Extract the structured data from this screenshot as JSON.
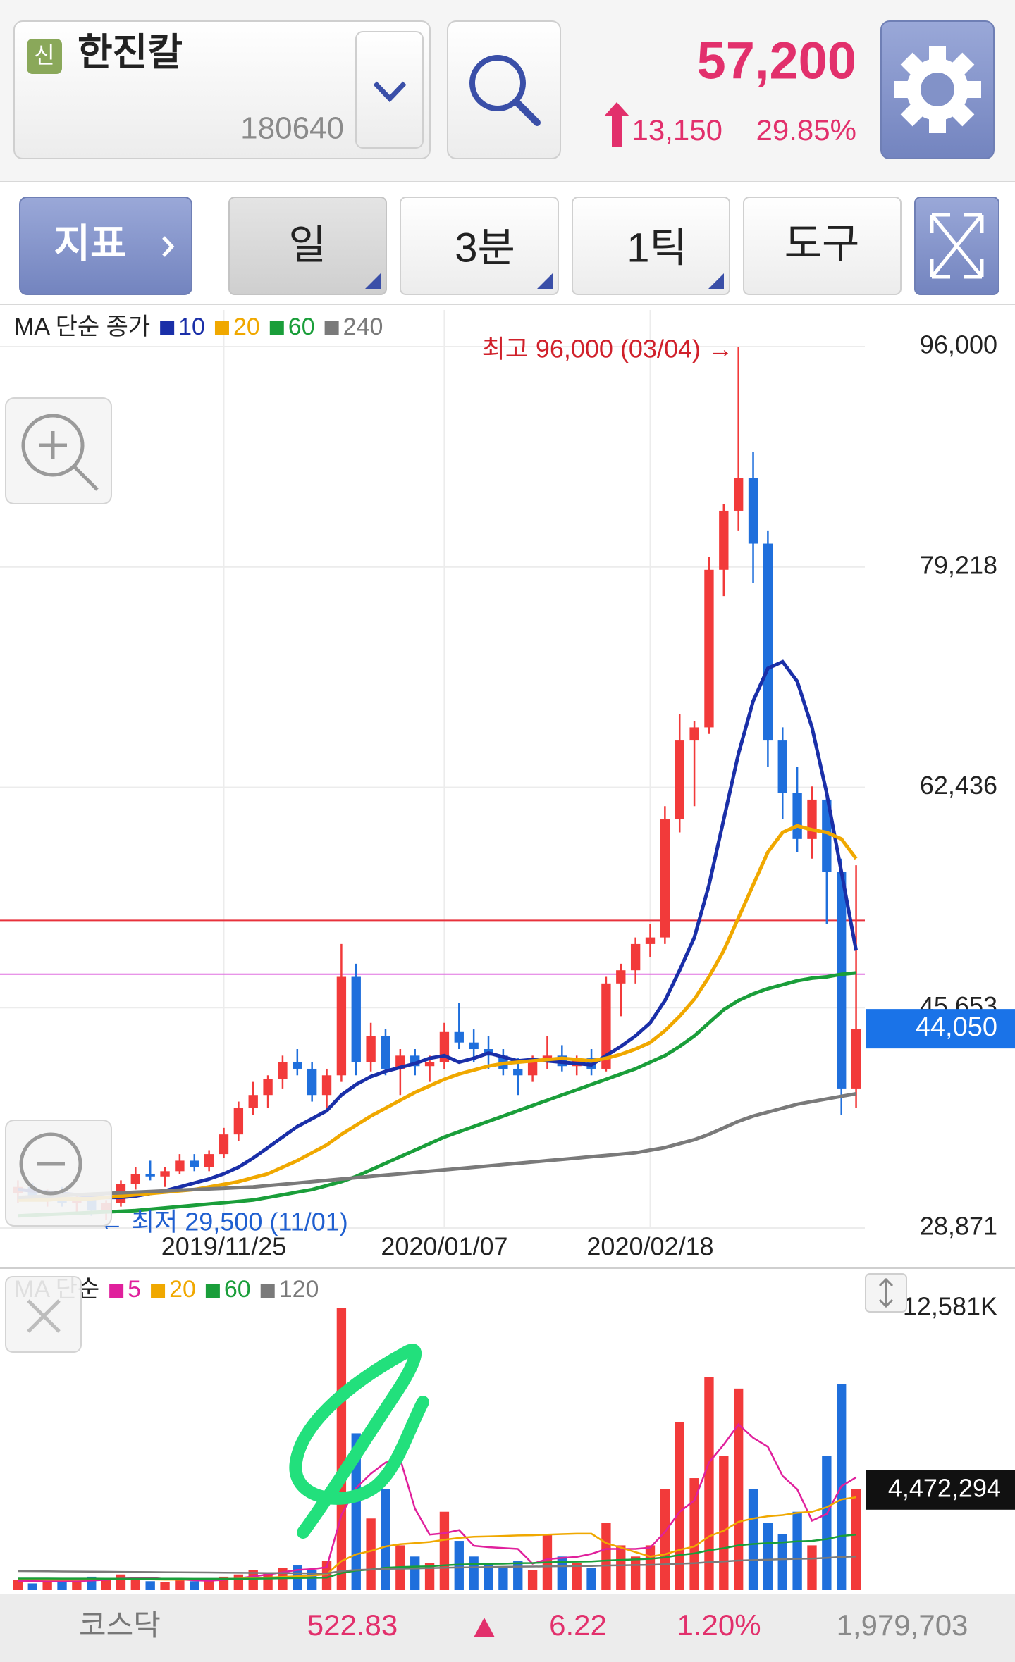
{
  "header": {
    "badge": "신",
    "name": "한진칼",
    "code": "180640",
    "price": "57,200",
    "change": "13,150",
    "change_pct": "29.85%"
  },
  "toolbar": {
    "indicator": "지표",
    "period": "일",
    "interval": "3분",
    "tick": "1틱",
    "tools": "도구"
  },
  "footer": {
    "market": "코스닥",
    "index": "522.83",
    "change": "6.22",
    "change_pct": "1.20%",
    "volume": "1,979,703"
  },
  "chart_data": [
    {
      "type": "candlestick",
      "legend_title": "MA 단순 종가",
      "categories": [
        null,
        null,
        null,
        null,
        null,
        null,
        null,
        null,
        null,
        null,
        null,
        null,
        null,
        null,
        "2019/11/25",
        null,
        null,
        null,
        null,
        null,
        null,
        null,
        null,
        null,
        null,
        null,
        null,
        null,
        null,
        "2020/01/07",
        null,
        null,
        null,
        null,
        null,
        null,
        null,
        null,
        null,
        null,
        null,
        null,
        null,
        "2020/02/18",
        null,
        null,
        null,
        null,
        null,
        null,
        null,
        null,
        null,
        null,
        null,
        null,
        null,
        null
      ],
      "candles": [
        [
          31500,
          32500,
          30800,
          32000
        ],
        [
          32000,
          32300,
          31000,
          31200
        ],
        [
          31200,
          31800,
          30500,
          31500
        ],
        [
          31500,
          32000,
          30500,
          30800
        ],
        [
          30800,
          31500,
          30000,
          31000
        ],
        [
          31000,
          31300,
          29800,
          30200
        ],
        [
          30200,
          31000,
          29500,
          30800
        ],
        [
          30800,
          32500,
          30500,
          32200
        ],
        [
          32200,
          33500,
          31800,
          33000
        ],
        [
          33000,
          34000,
          32500,
          32800
        ],
        [
          32800,
          33500,
          32000,
          33200
        ],
        [
          33200,
          34500,
          33000,
          34000
        ],
        [
          34000,
          34500,
          33200,
          33500
        ],
        [
          33500,
          34800,
          33200,
          34500
        ],
        [
          34500,
          36500,
          34200,
          36000
        ],
        [
          36000,
          38500,
          35500,
          38000
        ],
        [
          38000,
          40000,
          37500,
          39000
        ],
        [
          39000,
          40500,
          38000,
          40200
        ],
        [
          40200,
          42000,
          39500,
          41500
        ],
        [
          41500,
          42500,
          40500,
          41000
        ],
        [
          41000,
          41500,
          38500,
          39000
        ],
        [
          39000,
          41000,
          38000,
          40500
        ],
        [
          40500,
          50500,
          40000,
          48000
        ],
        [
          48000,
          49000,
          40500,
          41500
        ],
        [
          41500,
          44500,
          40800,
          43500
        ],
        [
          43500,
          44000,
          40500,
          41000
        ],
        [
          41000,
          42500,
          39000,
          42000
        ],
        [
          42000,
          42500,
          40500,
          41200
        ],
        [
          41200,
          42000,
          40000,
          41500
        ],
        [
          41500,
          44500,
          41000,
          43800
        ],
        [
          43800,
          46000,
          42500,
          43000
        ],
        [
          43000,
          44000,
          41500,
          42500
        ],
        [
          42500,
          43500,
          41000,
          42000
        ],
        [
          42000,
          42500,
          40500,
          41000
        ],
        [
          41000,
          41800,
          39000,
          40500
        ],
        [
          40500,
          42000,
          40000,
          41500
        ],
        [
          41500,
          43500,
          41000,
          42000
        ],
        [
          42000,
          42800,
          40800,
          41200
        ],
        [
          41200,
          42000,
          40500,
          41800
        ],
        [
          41800,
          42500,
          40500,
          41000
        ],
        [
          41000,
          48000,
          40800,
          47500
        ],
        [
          47500,
          49000,
          45000,
          48500
        ],
        [
          48500,
          51000,
          47500,
          50500
        ],
        [
          50500,
          52000,
          49500,
          51000
        ],
        [
          51000,
          61000,
          50500,
          60000
        ],
        [
          60000,
          68000,
          59000,
          66000
        ],
        [
          66000,
          67500,
          61000,
          67000
        ],
        [
          67000,
          80000,
          66500,
          79000
        ],
        [
          79000,
          84000,
          77000,
          83500
        ],
        [
          83500,
          96000,
          82000,
          86000
        ],
        [
          86000,
          88000,
          78000,
          81000
        ],
        [
          81000,
          82000,
          64000,
          66000
        ],
        [
          66000,
          67000,
          60000,
          62000
        ],
        [
          62000,
          64000,
          57500,
          58500
        ],
        [
          58500,
          62500,
          57000,
          61500
        ],
        [
          61500,
          62000,
          52000,
          56000
        ],
        [
          56000,
          57000,
          37500,
          39500
        ],
        [
          39500,
          56500,
          38000,
          44050
        ]
      ],
      "up_color": "#f23a3a",
      "down_color": "#1f6fdc",
      "series": [
        {
          "name": "10",
          "color": "#1a2fa8",
          "values": [
            31800,
            31700,
            31600,
            31500,
            31400,
            31300,
            31200,
            31200,
            31300,
            31500,
            31700,
            32000,
            32300,
            32600,
            33000,
            33500,
            34200,
            35000,
            35800,
            36600,
            37200,
            37800,
            39000,
            39800,
            40400,
            40800,
            41100,
            41400,
            41800,
            42000,
            41500,
            41800,
            42200,
            41900,
            41600,
            41700,
            41600,
            41500,
            41400,
            41300,
            42000,
            42700,
            43500,
            44500,
            46200,
            48500,
            51000,
            55000,
            60000,
            65000,
            69000,
            71500,
            72000,
            70500,
            67000,
            62000,
            56000,
            50000
          ]
        },
        {
          "name": "20",
          "color": "#f0a800",
          "values": [
            31000,
            31000,
            31000,
            31100,
            31100,
            31100,
            31200,
            31300,
            31400,
            31500,
            31600,
            31700,
            31800,
            32000,
            32200,
            32400,
            32700,
            33000,
            33500,
            34000,
            34600,
            35200,
            36000,
            36700,
            37400,
            38000,
            38600,
            39200,
            39700,
            40200,
            40600,
            40900,
            41200,
            41400,
            41500,
            41600,
            41700,
            41800,
            41700,
            41600,
            41800,
            42100,
            42500,
            43000,
            43900,
            45000,
            46300,
            48000,
            50000,
            52500,
            55000,
            57500,
            59000,
            59500,
            59200,
            59000,
            58500,
            57000
          ]
        },
        {
          "name": "60",
          "color": "#1a9e3a",
          "values": [
            29800,
            29850,
            29900,
            29950,
            30000,
            30050,
            30100,
            30150,
            30200,
            30300,
            30400,
            30500,
            30600,
            30700,
            30800,
            30900,
            31000,
            31200,
            31400,
            31600,
            31800,
            32100,
            32400,
            32800,
            33300,
            33800,
            34300,
            34800,
            35300,
            35800,
            36200,
            36600,
            37000,
            37400,
            37800,
            38200,
            38600,
            39000,
            39400,
            39800,
            40200,
            40600,
            41000,
            41500,
            42000,
            42700,
            43500,
            44500,
            45500,
            46200,
            46700,
            47100,
            47400,
            47700,
            47900,
            48000,
            48200,
            48300
          ]
        },
        {
          "name": "240",
          "color": "#7a7a7a",
          "values": [
            31200,
            31250,
            31300,
            31350,
            31400,
            31450,
            31500,
            31550,
            31600,
            31650,
            31700,
            31750,
            31800,
            31850,
            31900,
            31950,
            32000,
            32100,
            32200,
            32300,
            32400,
            32500,
            32600,
            32700,
            32800,
            32900,
            33000,
            33100,
            33200,
            33300,
            33400,
            33500,
            33600,
            33700,
            33800,
            33900,
            34000,
            34100,
            34200,
            34300,
            34400,
            34500,
            34600,
            34800,
            35000,
            35300,
            35600,
            36000,
            36500,
            37000,
            37400,
            37700,
            38000,
            38300,
            38500,
            38700,
            38900,
            39100
          ]
        }
      ],
      "ylim": [
        28871,
        96000
      ],
      "yticks": [
        {
          "value": 28871,
          "label": "28,871"
        },
        {
          "value": 45653,
          "label": "45,653"
        },
        {
          "value": 62436,
          "label": "62,436"
        },
        {
          "value": 79218,
          "label": "79,218"
        },
        {
          "value": 96000,
          "label": "96,000"
        }
      ],
      "grid": true,
      "hlines": [
        {
          "value": 52300,
          "color": "#e8323c"
        },
        {
          "value": 48200,
          "color": "#e070e0"
        }
      ],
      "last_value": {
        "value": 44050,
        "label": "44,050"
      },
      "annotations": {
        "high": "최고 96,000 (03/04) →",
        "low": "← 최저 29,500 (11/01)"
      }
    },
    {
      "type": "bar",
      "legend_title": "MA 단순",
      "values": [
        450,
        300,
        500,
        350,
        400,
        600,
        550,
        700,
        500,
        400,
        350,
        450,
        400,
        500,
        600,
        700,
        900,
        800,
        1000,
        1100,
        900,
        1300,
        12581,
        7000,
        3200,
        4500,
        2000,
        1500,
        1200,
        3500,
        2200,
        1500,
        1200,
        1000,
        1300,
        900,
        2500,
        1500,
        1200,
        1000,
        3000,
        2000,
        1500,
        2000,
        4500,
        7500,
        5000,
        9500,
        6000,
        9000,
        4500,
        3000,
        2500,
        3500,
        2000,
        6000,
        9200,
        4500
      ],
      "series": [
        {
          "name": "5",
          "color": "#e0209c",
          "values": [
            400,
            400,
            420,
            400,
            400,
            430,
            460,
            520,
            530,
            550,
            500,
            480,
            440,
            420,
            460,
            530,
            610,
            700,
            800,
            900,
            940,
            1020,
            3360,
            4560,
            5200,
            5700,
            5850,
            3640,
            2480,
            2540,
            2680,
            1980,
            1920,
            1880,
            1840,
            1180,
            1380,
            1440,
            1480,
            1620,
            1840,
            1840,
            1840,
            1900,
            2600,
            3500,
            4000,
            5700,
            6500,
            7400,
            6800,
            6400,
            5100,
            4500,
            3100,
            3400,
            4640,
            5040
          ]
        },
        {
          "name": "20",
          "color": "#f0a800",
          "values": [
            480,
            480,
            470,
            470,
            470,
            480,
            480,
            490,
            490,
            480,
            470,
            470,
            480,
            490,
            500,
            520,
            540,
            560,
            590,
            620,
            650,
            700,
            1300,
            1600,
            1750,
            1950,
            2050,
            2100,
            2150,
            2250,
            2330,
            2380,
            2400,
            2420,
            2440,
            2450,
            2480,
            2500,
            2520,
            2520,
            2100,
            1900,
            1700,
            1500,
            1600,
            1800,
            1950,
            2400,
            2650,
            3050,
            3200,
            3300,
            3350,
            3450,
            3500,
            3700,
            4050,
            4150
          ]
        },
        {
          "name": "60",
          "color": "#1a9e3a",
          "values": [
            520,
            520,
            520,
            515,
            515,
            515,
            510,
            510,
            510,
            510,
            510,
            510,
            505,
            505,
            505,
            505,
            510,
            520,
            530,
            540,
            550,
            560,
            760,
            870,
            920,
            1000,
            1030,
            1050,
            1060,
            1110,
            1140,
            1160,
            1170,
            1180,
            1200,
            1210,
            1240,
            1260,
            1270,
            1280,
            1320,
            1350,
            1370,
            1400,
            1460,
            1570,
            1640,
            1780,
            1870,
            2000,
            2060,
            2100,
            2130,
            2180,
            2200,
            2280,
            2420,
            2480
          ]
        },
        {
          "name": "120",
          "color": "#7a7a7a",
          "values": [
            850,
            845,
            840,
            835,
            830,
            825,
            820,
            815,
            810,
            805,
            800,
            795,
            790,
            785,
            780,
            775,
            770,
            765,
            760,
            755,
            750,
            750,
            850,
            900,
            920,
            950,
            960,
            970,
            980,
            1000,
            1010,
            1020,
            1030,
            1040,
            1050,
            1055,
            1060,
            1070,
            1075,
            1080,
            1100,
            1110,
            1120,
            1130,
            1150,
            1180,
            1200,
            1250,
            1280,
            1320,
            1340,
            1360,
            1380,
            1400,
            1410,
            1440,
            1480,
            1500
          ]
        }
      ],
      "ylim": [
        0,
        12581
      ],
      "yticks": [
        {
          "value": 12581,
          "label": "12,581K"
        }
      ],
      "last_value": {
        "value": 4472.294,
        "label": "4,472,294"
      }
    }
  ]
}
